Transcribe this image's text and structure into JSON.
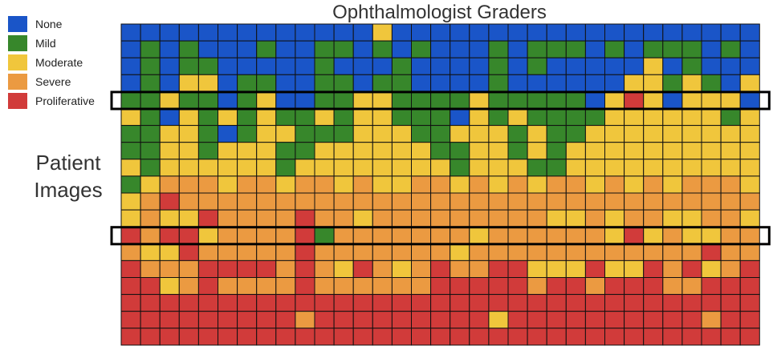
{
  "chart_data": {
    "type": "heatmap",
    "title": "Ophthalmologist Graders",
    "ylabel": [
      "Patient",
      "Images"
    ],
    "legend": {
      "position": "top-left",
      "entries": [
        {
          "label": "None",
          "code": 0,
          "color": "#1a55c8"
        },
        {
          "label": "Mild",
          "code": 1,
          "color": "#37872b"
        },
        {
          "label": "Moderate",
          "code": 2,
          "color": "#f0c63c"
        },
        {
          "label": "Severe",
          "code": 3,
          "color": "#eb9a41"
        },
        {
          "label": "Proliferative",
          "code": 4,
          "color": "#d13b3a"
        }
      ]
    },
    "n_graders": 33,
    "n_images": 19,
    "highlighted_rows": [
      4,
      12
    ],
    "grid_lines": true,
    "grades": [
      [
        0,
        0,
        0,
        0,
        0,
        0,
        0,
        0,
        0,
        0,
        0,
        0,
        0,
        2,
        0,
        0,
        0,
        0,
        0,
        0,
        0,
        0,
        0,
        0,
        0,
        0,
        0,
        0,
        0,
        0,
        0,
        0,
        0
      ],
      [
        0,
        1,
        0,
        1,
        0,
        0,
        0,
        1,
        0,
        0,
        1,
        1,
        0,
        1,
        0,
        1,
        0,
        0,
        0,
        1,
        0,
        1,
        1,
        1,
        0,
        1,
        0,
        1,
        1,
        1,
        0,
        1,
        0
      ],
      [
        0,
        1,
        0,
        1,
        1,
        0,
        0,
        0,
        0,
        0,
        1,
        0,
        0,
        0,
        1,
        0,
        0,
        0,
        0,
        1,
        0,
        1,
        0,
        0,
        0,
        0,
        0,
        2,
        0,
        1,
        0,
        0,
        0
      ],
      [
        0,
        1,
        0,
        2,
        2,
        0,
        1,
        1,
        0,
        0,
        1,
        1,
        0,
        1,
        1,
        0,
        0,
        0,
        0,
        1,
        0,
        0,
        0,
        0,
        0,
        0,
        2,
        2,
        1,
        2,
        1,
        0,
        2
      ],
      [
        1,
        1,
        2,
        1,
        1,
        0,
        1,
        2,
        0,
        0,
        1,
        1,
        2,
        2,
        1,
        1,
        1,
        1,
        2,
        1,
        1,
        1,
        1,
        1,
        0,
        2,
        4,
        2,
        0,
        2,
        2,
        2,
        0
      ],
      [
        2,
        1,
        0,
        2,
        1,
        2,
        1,
        2,
        1,
        1,
        2,
        1,
        2,
        2,
        1,
        1,
        1,
        0,
        2,
        1,
        2,
        1,
        1,
        1,
        1,
        2,
        2,
        2,
        2,
        2,
        2,
        1,
        2
      ],
      [
        1,
        1,
        2,
        2,
        1,
        0,
        1,
        2,
        2,
        1,
        1,
        1,
        2,
        2,
        2,
        1,
        1,
        2,
        2,
        2,
        1,
        2,
        1,
        1,
        2,
        2,
        2,
        2,
        2,
        2,
        2,
        2,
        2
      ],
      [
        1,
        1,
        2,
        2,
        1,
        2,
        2,
        2,
        1,
        1,
        2,
        2,
        2,
        2,
        2,
        2,
        1,
        1,
        2,
        2,
        1,
        2,
        1,
        2,
        2,
        2,
        2,
        2,
        2,
        2,
        2,
        2,
        2
      ],
      [
        2,
        1,
        2,
        2,
        2,
        2,
        2,
        2,
        1,
        2,
        2,
        2,
        2,
        2,
        2,
        2,
        2,
        1,
        2,
        2,
        2,
        1,
        1,
        2,
        2,
        2,
        2,
        2,
        2,
        2,
        2,
        2,
        2
      ],
      [
        1,
        2,
        3,
        3,
        3,
        2,
        3,
        3,
        2,
        3,
        3,
        2,
        3,
        2,
        2,
        3,
        3,
        2,
        3,
        2,
        3,
        2,
        3,
        3,
        2,
        3,
        2,
        3,
        2,
        3,
        3,
        3,
        2
      ],
      [
        2,
        3,
        4,
        3,
        3,
        3,
        3,
        3,
        3,
        3,
        3,
        3,
        3,
        3,
        3,
        3,
        3,
        3,
        3,
        3,
        3,
        3,
        3,
        3,
        3,
        3,
        3,
        3,
        3,
        3,
        3,
        3,
        3
      ],
      [
        2,
        3,
        2,
        2,
        4,
        3,
        3,
        3,
        3,
        4,
        3,
        3,
        2,
        3,
        3,
        3,
        3,
        3,
        3,
        3,
        3,
        3,
        2,
        2,
        3,
        2,
        3,
        3,
        2,
        2,
        3,
        3,
        2
      ],
      [
        4,
        3,
        4,
        4,
        2,
        3,
        3,
        3,
        3,
        4,
        1,
        3,
        3,
        3,
        3,
        3,
        3,
        3,
        2,
        3,
        3,
        3,
        3,
        3,
        3,
        2,
        4,
        2,
        3,
        2,
        2,
        3,
        3
      ],
      [
        3,
        2,
        2,
        4,
        3,
        3,
        3,
        3,
        3,
        4,
        3,
        3,
        3,
        3,
        3,
        3,
        3,
        2,
        3,
        3,
        3,
        3,
        3,
        3,
        3,
        3,
        3,
        3,
        3,
        3,
        4,
        3,
        3
      ],
      [
        4,
        3,
        3,
        3,
        4,
        4,
        4,
        4,
        3,
        4,
        3,
        2,
        4,
        3,
        2,
        3,
        4,
        3,
        3,
        4,
        4,
        2,
        2,
        2,
        4,
        2,
        2,
        4,
        3,
        4,
        2,
        3,
        4
      ],
      [
        4,
        4,
        2,
        3,
        4,
        3,
        3,
        3,
        3,
        4,
        3,
        3,
        3,
        3,
        3,
        3,
        4,
        4,
        4,
        4,
        4,
        3,
        4,
        4,
        3,
        4,
        4,
        4,
        3,
        3,
        4,
        4,
        4
      ],
      [
        4,
        4,
        4,
        4,
        4,
        4,
        4,
        4,
        4,
        4,
        4,
        4,
        4,
        4,
        4,
        4,
        4,
        4,
        4,
        4,
        4,
        4,
        4,
        4,
        4,
        4,
        4,
        4,
        4,
        4,
        4,
        4,
        4
      ],
      [
        4,
        4,
        4,
        4,
        4,
        4,
        4,
        4,
        4,
        3,
        4,
        4,
        4,
        4,
        4,
        4,
        4,
        4,
        4,
        2,
        4,
        4,
        4,
        4,
        4,
        4,
        4,
        4,
        4,
        4,
        3,
        4,
        4
      ],
      [
        4,
        4,
        4,
        4,
        4,
        4,
        4,
        4,
        4,
        4,
        4,
        4,
        4,
        4,
        4,
        4,
        4,
        4,
        4,
        4,
        4,
        4,
        4,
        4,
        4,
        4,
        4,
        4,
        4,
        4,
        4,
        4,
        4
      ]
    ]
  }
}
